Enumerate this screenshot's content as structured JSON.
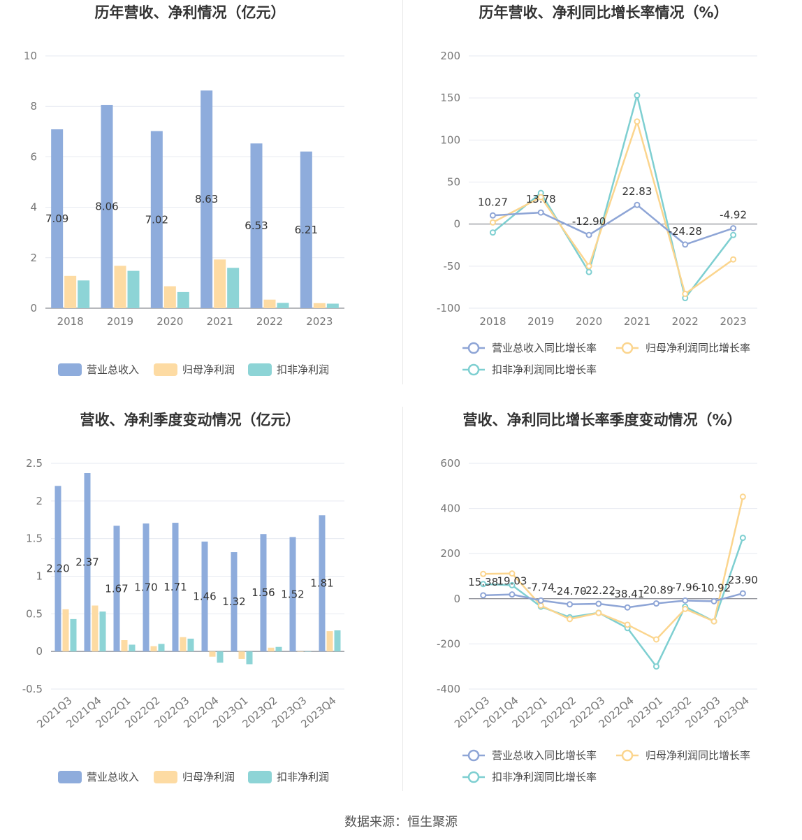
{
  "colors": {
    "revenue": "#8eacdc",
    "net_profit": "#fddba3",
    "deducted_profit": "#8dd4d6",
    "revenue_line": "#8ea5d6",
    "net_line": "#fbd58e",
    "deducted_line": "#7ecfd1"
  },
  "source": "数据来源：恒生聚源",
  "chart_data": [
    {
      "type": "bar",
      "title": "历年营收、净利情况（亿元）",
      "categories": [
        "2018",
        "2019",
        "2020",
        "2021",
        "2022",
        "2023"
      ],
      "ylim": [
        0,
        10
      ],
      "yticks": [
        0,
        2,
        4,
        6,
        8,
        10
      ],
      "series": [
        {
          "name": "营业总收入",
          "color_key": "revenue",
          "values": [
            7.09,
            8.06,
            7.02,
            8.63,
            6.53,
            6.21
          ],
          "labels": [
            "7.09",
            "8.06",
            "7.02",
            "8.63",
            "6.53",
            "6.21"
          ]
        },
        {
          "name": "归母净利润",
          "color_key": "net_profit",
          "values": [
            1.28,
            1.68,
            0.87,
            1.93,
            0.34,
            0.2
          ]
        },
        {
          "name": "扣非净利润",
          "color_key": "deducted_profit",
          "values": [
            1.1,
            1.48,
            0.64,
            1.6,
            0.21,
            0.18
          ]
        }
      ]
    },
    {
      "type": "line",
      "title": "历年营收、净利同比增长率情况（%）",
      "categories": [
        "2018",
        "2019",
        "2020",
        "2021",
        "2022",
        "2023"
      ],
      "ylim": [
        -100,
        200
      ],
      "yticks": [
        -100,
        -50,
        0,
        50,
        100,
        150,
        200
      ],
      "series": [
        {
          "name": "营业总收入同比增长率",
          "color_key": "revenue_line",
          "values": [
            10.27,
            13.78,
            -12.9,
            22.83,
            -24.28,
            -4.92
          ],
          "labels": [
            "10.27",
            "13.78",
            "-12.90",
            "22.83",
            "-24.28",
            "-4.92"
          ]
        },
        {
          "name": "归母净利润同比增长率",
          "color_key": "net_line",
          "values": [
            2,
            32,
            -50,
            122,
            -83,
            -42
          ]
        },
        {
          "name": "扣非净利润同比增长率",
          "color_key": "deducted_line",
          "values": [
            -10,
            37,
            -57,
            153,
            -88,
            -13
          ]
        }
      ]
    },
    {
      "type": "bar",
      "title": "营收、净利季度变动情况（亿元）",
      "categories": [
        "2021Q3",
        "2021Q4",
        "2022Q1",
        "2022Q2",
        "2022Q3",
        "2022Q4",
        "2023Q1",
        "2023Q2",
        "2023Q3",
        "2023Q4"
      ],
      "ylim": [
        -0.5,
        2.5
      ],
      "yticks": [
        -0.5,
        0,
        0.5,
        1,
        1.5,
        2,
        2.5
      ],
      "ytick_labels": [
        "-0.5",
        "0",
        "0.5",
        "1",
        "1.5",
        "2",
        "2.5"
      ],
      "series": [
        {
          "name": "营业总收入",
          "color_key": "revenue",
          "values": [
            2.2,
            2.37,
            1.67,
            1.7,
            1.71,
            1.46,
            1.32,
            1.56,
            1.52,
            1.81
          ],
          "labels": [
            "2.20",
            "2.37",
            "1.67",
            "1.70",
            "1.71",
            "1.46",
            "1.32",
            "1.56",
            "1.52",
            "1.81"
          ]
        },
        {
          "name": "归母净利润",
          "color_key": "net_profit",
          "values": [
            0.56,
            0.61,
            0.15,
            0.07,
            0.19,
            -0.07,
            -0.1,
            0.05,
            0.0,
            0.27
          ]
        },
        {
          "name": "扣非净利润",
          "color_key": "deducted_profit",
          "values": [
            0.43,
            0.53,
            0.09,
            0.1,
            0.17,
            -0.15,
            -0.17,
            0.06,
            0.0,
            0.28
          ]
        }
      ]
    },
    {
      "type": "line",
      "title": "营收、净利同比增长率季度变动情况（%）",
      "categories": [
        "2021Q3",
        "2021Q4",
        "2022Q1",
        "2022Q2",
        "2022Q3",
        "2022Q4",
        "2023Q1",
        "2023Q2",
        "2023Q3",
        "2023Q4"
      ],
      "ylim": [
        -400,
        600
      ],
      "yticks": [
        -400,
        -200,
        0,
        200,
        400,
        600
      ],
      "series": [
        {
          "name": "营业总收入同比增长率",
          "color_key": "revenue_line",
          "values": [
            15.38,
            19.03,
            -7.74,
            -24.7,
            -22.22,
            -38.41,
            -20.89,
            -7.96,
            -10.92,
            23.9
          ],
          "labels": [
            "15.38",
            "19.03",
            "-7.74",
            "-24.70",
            "-22.22",
            "-38.41",
            "-20.89",
            "-7.96",
            "-10.92",
            "23.90"
          ]
        },
        {
          "name": "归母净利润同比增长率",
          "color_key": "net_line",
          "values": [
            110,
            112,
            -30,
            -90,
            -63,
            -115,
            -180,
            -45,
            -100,
            452
          ]
        },
        {
          "name": "扣非净利润同比增长率",
          "color_key": "deducted_line",
          "values": [
            65,
            60,
            -35,
            -82,
            -62,
            -130,
            -300,
            -35,
            -100,
            270
          ]
        }
      ]
    }
  ]
}
